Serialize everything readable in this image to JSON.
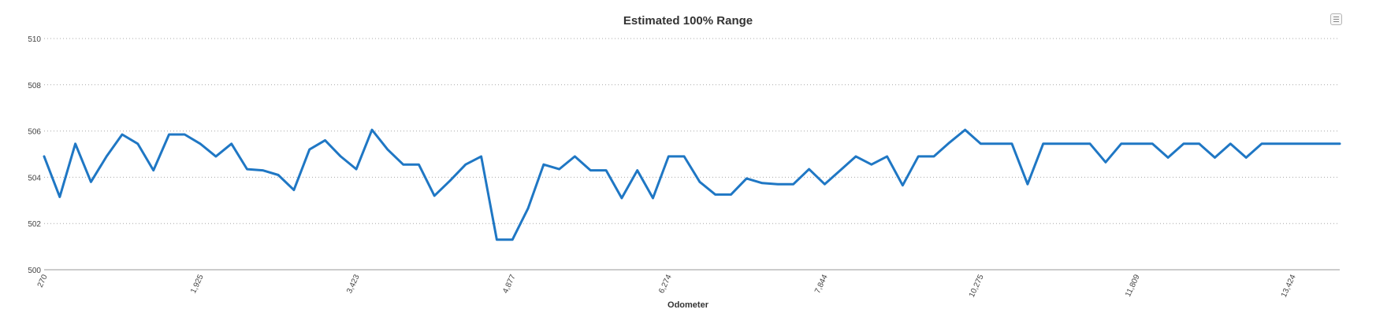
{
  "chart_data": {
    "type": "line",
    "title": "Estimated 100% Range",
    "xlabel": "Odometer",
    "ylabel": "",
    "ylim": [
      500,
      510
    ],
    "yticks": [
      "500",
      "502",
      "504",
      "506",
      "508",
      "510"
    ],
    "xtick_labels": [
      "270",
      "1,925",
      "3,423",
      "4,877",
      "6,274",
      "7,844",
      "10,275",
      "11,809",
      "13,424"
    ],
    "grid": true,
    "legend": "none",
    "series": [
      {
        "color": "#1f77c4",
        "values": [
          504.9,
          503.15,
          505.45,
          503.8,
          504.9,
          505.85,
          505.45,
          504.3,
          505.85,
          505.85,
          505.45,
          504.9,
          505.45,
          504.35,
          504.3,
          504.1,
          503.45,
          505.2,
          505.6,
          504.9,
          504.35,
          506.05,
          505.2,
          504.55,
          504.55,
          503.2,
          503.85,
          504.55,
          504.9,
          501.3,
          501.3,
          502.65,
          504.55,
          504.35,
          504.9,
          504.3,
          504.3,
          503.1,
          504.3,
          503.1,
          504.9,
          504.9,
          503.8,
          503.25,
          503.25,
          503.95,
          503.75,
          503.7,
          503.7,
          504.35,
          503.7,
          504.3,
          504.9,
          504.55,
          504.9,
          503.65,
          504.9,
          504.9,
          505.5,
          506.05,
          505.45,
          505.45,
          505.45,
          503.7,
          505.45,
          505.45,
          505.45,
          505.45,
          504.65,
          505.45,
          505.45,
          505.45,
          504.85,
          505.45,
          505.45,
          504.85,
          505.45,
          504.85,
          505.45,
          505.45,
          505.45,
          505.45,
          505.45,
          505.45
        ]
      }
    ]
  },
  "ui": {
    "menu_icon": "hamburger-menu-icon"
  }
}
